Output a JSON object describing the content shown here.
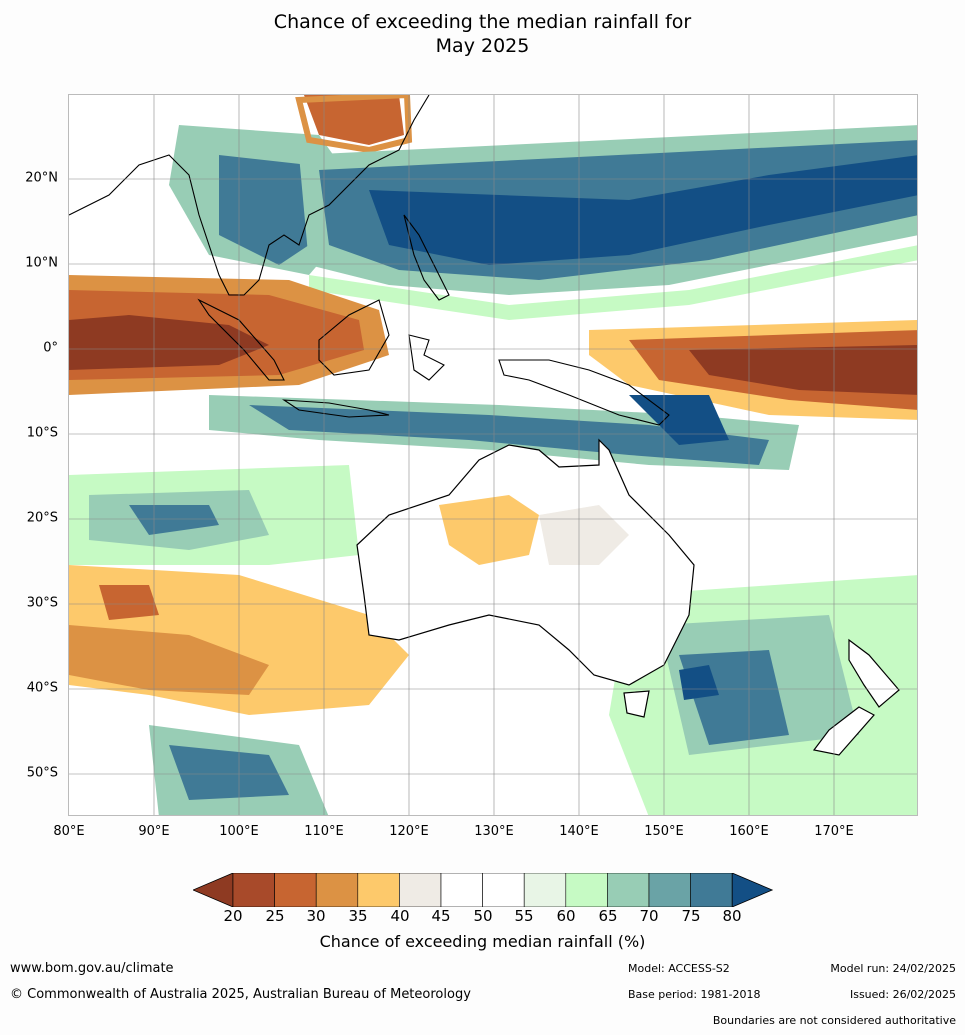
{
  "title": {
    "line1": "Chance of exceeding the median rainfall for",
    "line2": "May 2025"
  },
  "axes": {
    "lat_labels": [
      "20°N",
      "10°N",
      "0°",
      "10°S",
      "20°S",
      "30°S",
      "40°S",
      "50°S"
    ],
    "lon_labels": [
      "80°E",
      "90°E",
      "100°E",
      "110°E",
      "120°E",
      "130°E",
      "140°E",
      "150°E",
      "160°E",
      "170°E"
    ]
  },
  "colorbar": {
    "title": "Chance of exceeding median rainfall (%)",
    "ticks": [
      "20",
      "25",
      "30",
      "35",
      "40",
      "45",
      "50",
      "55",
      "60",
      "65",
      "70",
      "75",
      "80"
    ],
    "colors": [
      "#8e3a22",
      "#a84a2a",
      "#c76531",
      "#dc9244",
      "#fdc96b",
      "#efebe5",
      "#ffffff",
      "#ffffff",
      "#e8f5e6",
      "#c6fac4",
      "#98cdb5",
      "#6aa3a6",
      "#407a96",
      "#134f85"
    ]
  },
  "footer": {
    "website": "www.bom.gov.au/climate",
    "copyright": "© Commonwealth of Australia 2025, Australian Bureau of Meteorology",
    "model": "Model: ACCESS-S2",
    "base_period": "Base period: 1981-2018",
    "model_run": "Model run: 24/02/2025",
    "issued": "Issued: 26/02/2025",
    "disclaimer": "Boundaries are not considered authoritative"
  }
}
